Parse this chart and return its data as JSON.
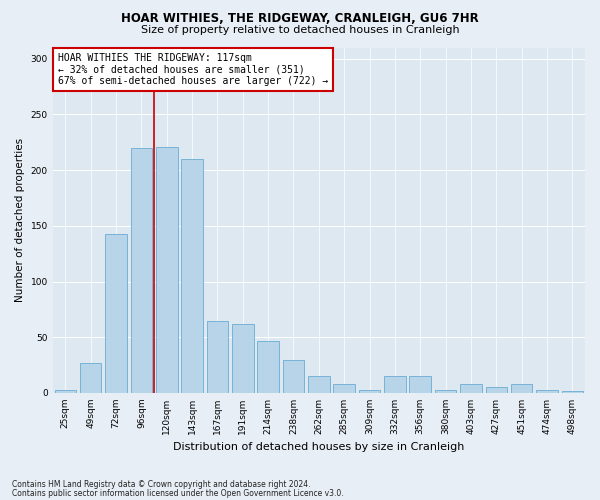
{
  "title1": "HOAR WITHIES, THE RIDGEWAY, CRANLEIGH, GU6 7HR",
  "title2": "Size of property relative to detached houses in Cranleigh",
  "xlabel": "Distribution of detached houses by size in Cranleigh",
  "ylabel": "Number of detached properties",
  "categories": [
    "25sqm",
    "49sqm",
    "72sqm",
    "96sqm",
    "120sqm",
    "143sqm",
    "167sqm",
    "191sqm",
    "214sqm",
    "238sqm",
    "262sqm",
    "285sqm",
    "309sqm",
    "332sqm",
    "356sqm",
    "380sqm",
    "403sqm",
    "427sqm",
    "451sqm",
    "474sqm",
    "498sqm"
  ],
  "values": [
    3,
    27,
    143,
    220,
    221,
    210,
    65,
    62,
    47,
    30,
    15,
    8,
    3,
    15,
    15,
    3,
    8,
    5,
    8,
    3,
    2
  ],
  "bar_color": "#b8d4e8",
  "bar_edge_color": "#6aadd5",
  "vline_x_index": 4,
  "vline_color": "#cc0000",
  "annotation_line1": "HOAR WITHIES THE RIDGEWAY: 117sqm",
  "annotation_line2": "← 32% of detached houses are smaller (351)",
  "annotation_line3": "67% of semi-detached houses are larger (722) →",
  "annotation_box_color": "#ffffff",
  "annotation_border_color": "#cc0000",
  "ylim": [
    0,
    310
  ],
  "yticks": [
    0,
    50,
    100,
    150,
    200,
    250,
    300
  ],
  "footer1": "Contains HM Land Registry data © Crown copyright and database right 2024.",
  "footer2": "Contains public sector information licensed under the Open Government Licence v3.0.",
  "bg_color": "#e8eef5",
  "plot_bg_color": "#dde8f0",
  "grid_color": "#ffffff",
  "title1_fontsize": 8.5,
  "title2_fontsize": 8.0,
  "xlabel_fontsize": 8.0,
  "ylabel_fontsize": 7.5,
  "tick_fontsize": 6.5,
  "ann_fontsize": 7.0,
  "footer_fontsize": 5.5
}
